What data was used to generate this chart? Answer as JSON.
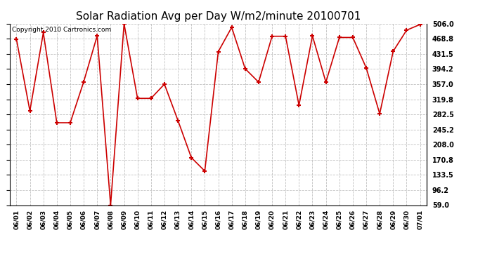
{
  "title": "Solar Radiation Avg per Day W/m2/minute 20100701",
  "copyright_text": "Copyright 2010 Cartronics.com",
  "labels": [
    "06/01",
    "06/02",
    "06/03",
    "06/04",
    "06/05",
    "06/06",
    "06/07",
    "06/08",
    "06/09",
    "06/10",
    "06/11",
    "06/12",
    "06/13",
    "06/14",
    "06/15",
    "06/16",
    "06/17",
    "06/18",
    "06/19",
    "06/20",
    "06/21",
    "06/22",
    "06/23",
    "06/24",
    "06/25",
    "06/26",
    "06/27",
    "06/28",
    "06/29",
    "06/30",
    "07/01"
  ],
  "values": [
    468.0,
    291.0,
    484.0,
    262.0,
    262.0,
    363.0,
    476.0,
    59.0,
    506.0,
    322.0,
    322.0,
    357.0,
    268.0,
    176.0,
    143.0,
    437.0,
    497.0,
    395.0,
    362.0,
    475.0,
    475.0,
    305.0,
    476.0,
    362.0,
    472.0,
    472.0,
    397.0,
    284.0,
    438.0,
    490.0,
    504.0
  ],
  "line_color": "#cc0000",
  "marker_color": "#cc0000",
  "bg_color": "#ffffff",
  "plot_bg_color": "#ffffff",
  "grid_color": "#c0c0c0",
  "title_fontsize": 11,
  "yticks": [
    59.0,
    96.2,
    133.5,
    170.8,
    208.0,
    245.2,
    282.5,
    319.8,
    357.0,
    394.2,
    431.5,
    468.8,
    506.0
  ],
  "ylim": [
    59.0,
    506.0
  ],
  "figsize": [
    6.9,
    3.75
  ],
  "dpi": 100
}
